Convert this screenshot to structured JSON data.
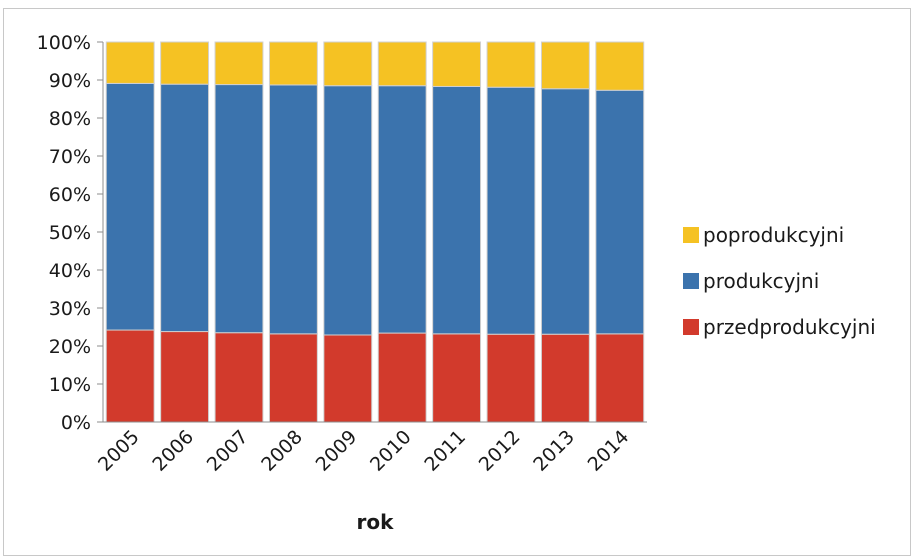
{
  "chart_data": {
    "type": "bar",
    "stacked": true,
    "percent_scale": true,
    "categories": [
      "2005",
      "2006",
      "2007",
      "2008",
      "2009",
      "2010",
      "2011",
      "2012",
      "2013",
      "2014"
    ],
    "series": [
      {
        "name": "przedprodukcyjni",
        "color": "#d23a2c",
        "values": [
          24.2,
          23.8,
          23.5,
          23.2,
          22.9,
          23.4,
          23.2,
          23.1,
          23.1,
          23.2
        ]
      },
      {
        "name": "produkcyjni",
        "color": "#3b73ad",
        "values": [
          64.9,
          65.1,
          65.3,
          65.5,
          65.6,
          65.1,
          65.1,
          65.0,
          64.6,
          64.1
        ]
      },
      {
        "name": "poprodukcyjni",
        "color": "#f5c223",
        "values": [
          10.9,
          11.1,
          11.2,
          11.3,
          11.5,
          11.5,
          11.7,
          11.9,
          12.3,
          12.7
        ]
      }
    ],
    "title": "",
    "xlabel": "rok",
    "ylabel": "",
    "ylim": [
      0,
      100
    ],
    "y_ticks": [
      "0%",
      "10%",
      "20%",
      "30%",
      "40%",
      "50%",
      "60%",
      "70%",
      "80%",
      "90%",
      "100%"
    ],
    "legend": {
      "position": "right",
      "order": [
        "poprodukcyjni",
        "produkcyjni",
        "przedprodukcyjni"
      ]
    },
    "grid": false
  }
}
